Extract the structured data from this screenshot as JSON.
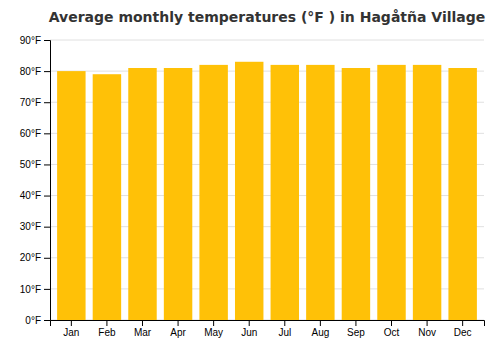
{
  "chart_data": {
    "type": "bar",
    "title": "Average monthly temperatures (°F ) in Hagåtña Village",
    "categories": [
      "Jan",
      "Feb",
      "Mar",
      "Apr",
      "May",
      "Jun",
      "Jul",
      "Aug",
      "Sep",
      "Oct",
      "Nov",
      "Dec"
    ],
    "values": [
      80,
      79,
      81,
      81,
      82,
      83,
      82,
      82,
      81,
      82,
      82,
      81
    ],
    "color": "#FFC107",
    "ylim": [
      0,
      90
    ],
    "yticks": [
      {
        "value": 0,
        "label": "0°F"
      },
      {
        "value": 10,
        "label": "10°F"
      },
      {
        "value": 20,
        "label": "20°F"
      },
      {
        "value": 30,
        "label": "30°F"
      },
      {
        "value": 40,
        "label": "40°F"
      },
      {
        "value": 50,
        "label": "50°F"
      },
      {
        "value": 60,
        "label": "60°F"
      },
      {
        "value": 70,
        "label": "70°F"
      },
      {
        "value": 80,
        "label": "80°F"
      },
      {
        "value": 90,
        "label": "90°F"
      }
    ],
    "grid": true
  }
}
